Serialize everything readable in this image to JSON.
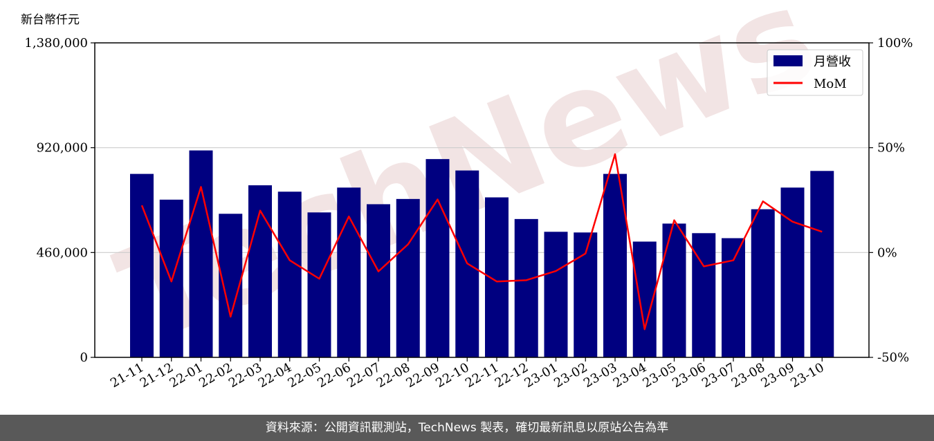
{
  "unit_label": "新台幣仟元",
  "footer_text": "資料來源：公開資訊觀測站，TechNews 製表，確切最新訊息以原站公告為準",
  "watermark_text": "TechNews",
  "chart_data": {
    "type": "bar+line",
    "categories": [
      "21-11",
      "21-12",
      "22-01",
      "22-02",
      "22-03",
      "22-04",
      "22-05",
      "22-06",
      "22-07",
      "22-08",
      "22-09",
      "22-10",
      "22-11",
      "22-12",
      "23-01",
      "23-02",
      "23-03",
      "23-04",
      "23-05",
      "23-06",
      "23-07",
      "23-08",
      "23-09",
      "23-10"
    ],
    "series": [
      {
        "name": "月營收",
        "type": "bar",
        "axis": "left",
        "color": "#000080",
        "values": [
          805000,
          692000,
          908000,
          630000,
          755000,
          727000,
          636000,
          745000,
          672000,
          695000,
          870000,
          820000,
          702000,
          607000,
          551000,
          548000,
          805000,
          508000,
          587000,
          545000,
          523000,
          650000,
          745000,
          818000
        ]
      },
      {
        "name": "MoM",
        "type": "line",
        "axis": "right",
        "color": "#ff0000",
        "values": [
          22.5,
          -13.8,
          31.3,
          -30.6,
          20.0,
          -3.7,
          -12.5,
          17.2,
          -9.0,
          3.9,
          25.3,
          -5.2,
          -13.8,
          -13.2,
          -8.8,
          -0.5,
          46.9,
          -36.6,
          15.4,
          -6.6,
          -3.7,
          24.4,
          14.7,
          9.9
        ]
      }
    ],
    "left_axis": {
      "ylim": [
        0,
        1380000
      ],
      "ticks": [
        0,
        460000,
        920000,
        1380000
      ],
      "tick_labels": [
        "0",
        "460,000",
        "920,000",
        "1,380,000"
      ]
    },
    "right_axis": {
      "ylim": [
        -50,
        100
      ],
      "ticks": [
        -50,
        0,
        50,
        100
      ],
      "tick_labels": [
        "-50%",
        "0%",
        "50%",
        "100%"
      ]
    },
    "grid": "horizontal",
    "legend": "top-right"
  }
}
